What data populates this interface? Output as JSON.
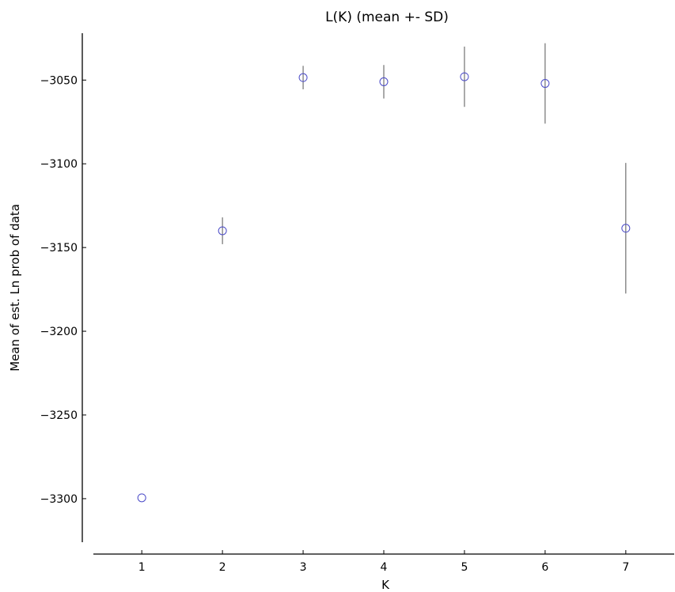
{
  "chart_data": {
    "type": "scatter",
    "title": "L(K) (mean +- SD)",
    "xlabel": "K",
    "ylabel": "Mean of est. Ln prob of data",
    "x": [
      1,
      2,
      3,
      4,
      5,
      6,
      7
    ],
    "y": [
      -3299.5,
      -3140,
      -3048.5,
      -3051,
      -3048,
      -3052,
      -3138.5
    ],
    "sd": [
      0,
      8,
      7,
      10,
      18,
      24,
      39
    ],
    "xticks": [
      "1",
      "2",
      "3",
      "4",
      "5",
      "6",
      "7"
    ],
    "yticks": [
      "−3050",
      "−3100",
      "−3150",
      "−3200",
      "−3250",
      "−3300"
    ],
    "ytick_values": [
      -3050,
      -3100,
      -3150,
      -3200,
      -3250,
      -3300
    ],
    "xlim": [
      0.4,
      7.6
    ],
    "ylim": [
      -3326,
      -3022
    ],
    "grid": false,
    "marker_color": "#4b4bc8",
    "errorbar_color": "#555555"
  }
}
